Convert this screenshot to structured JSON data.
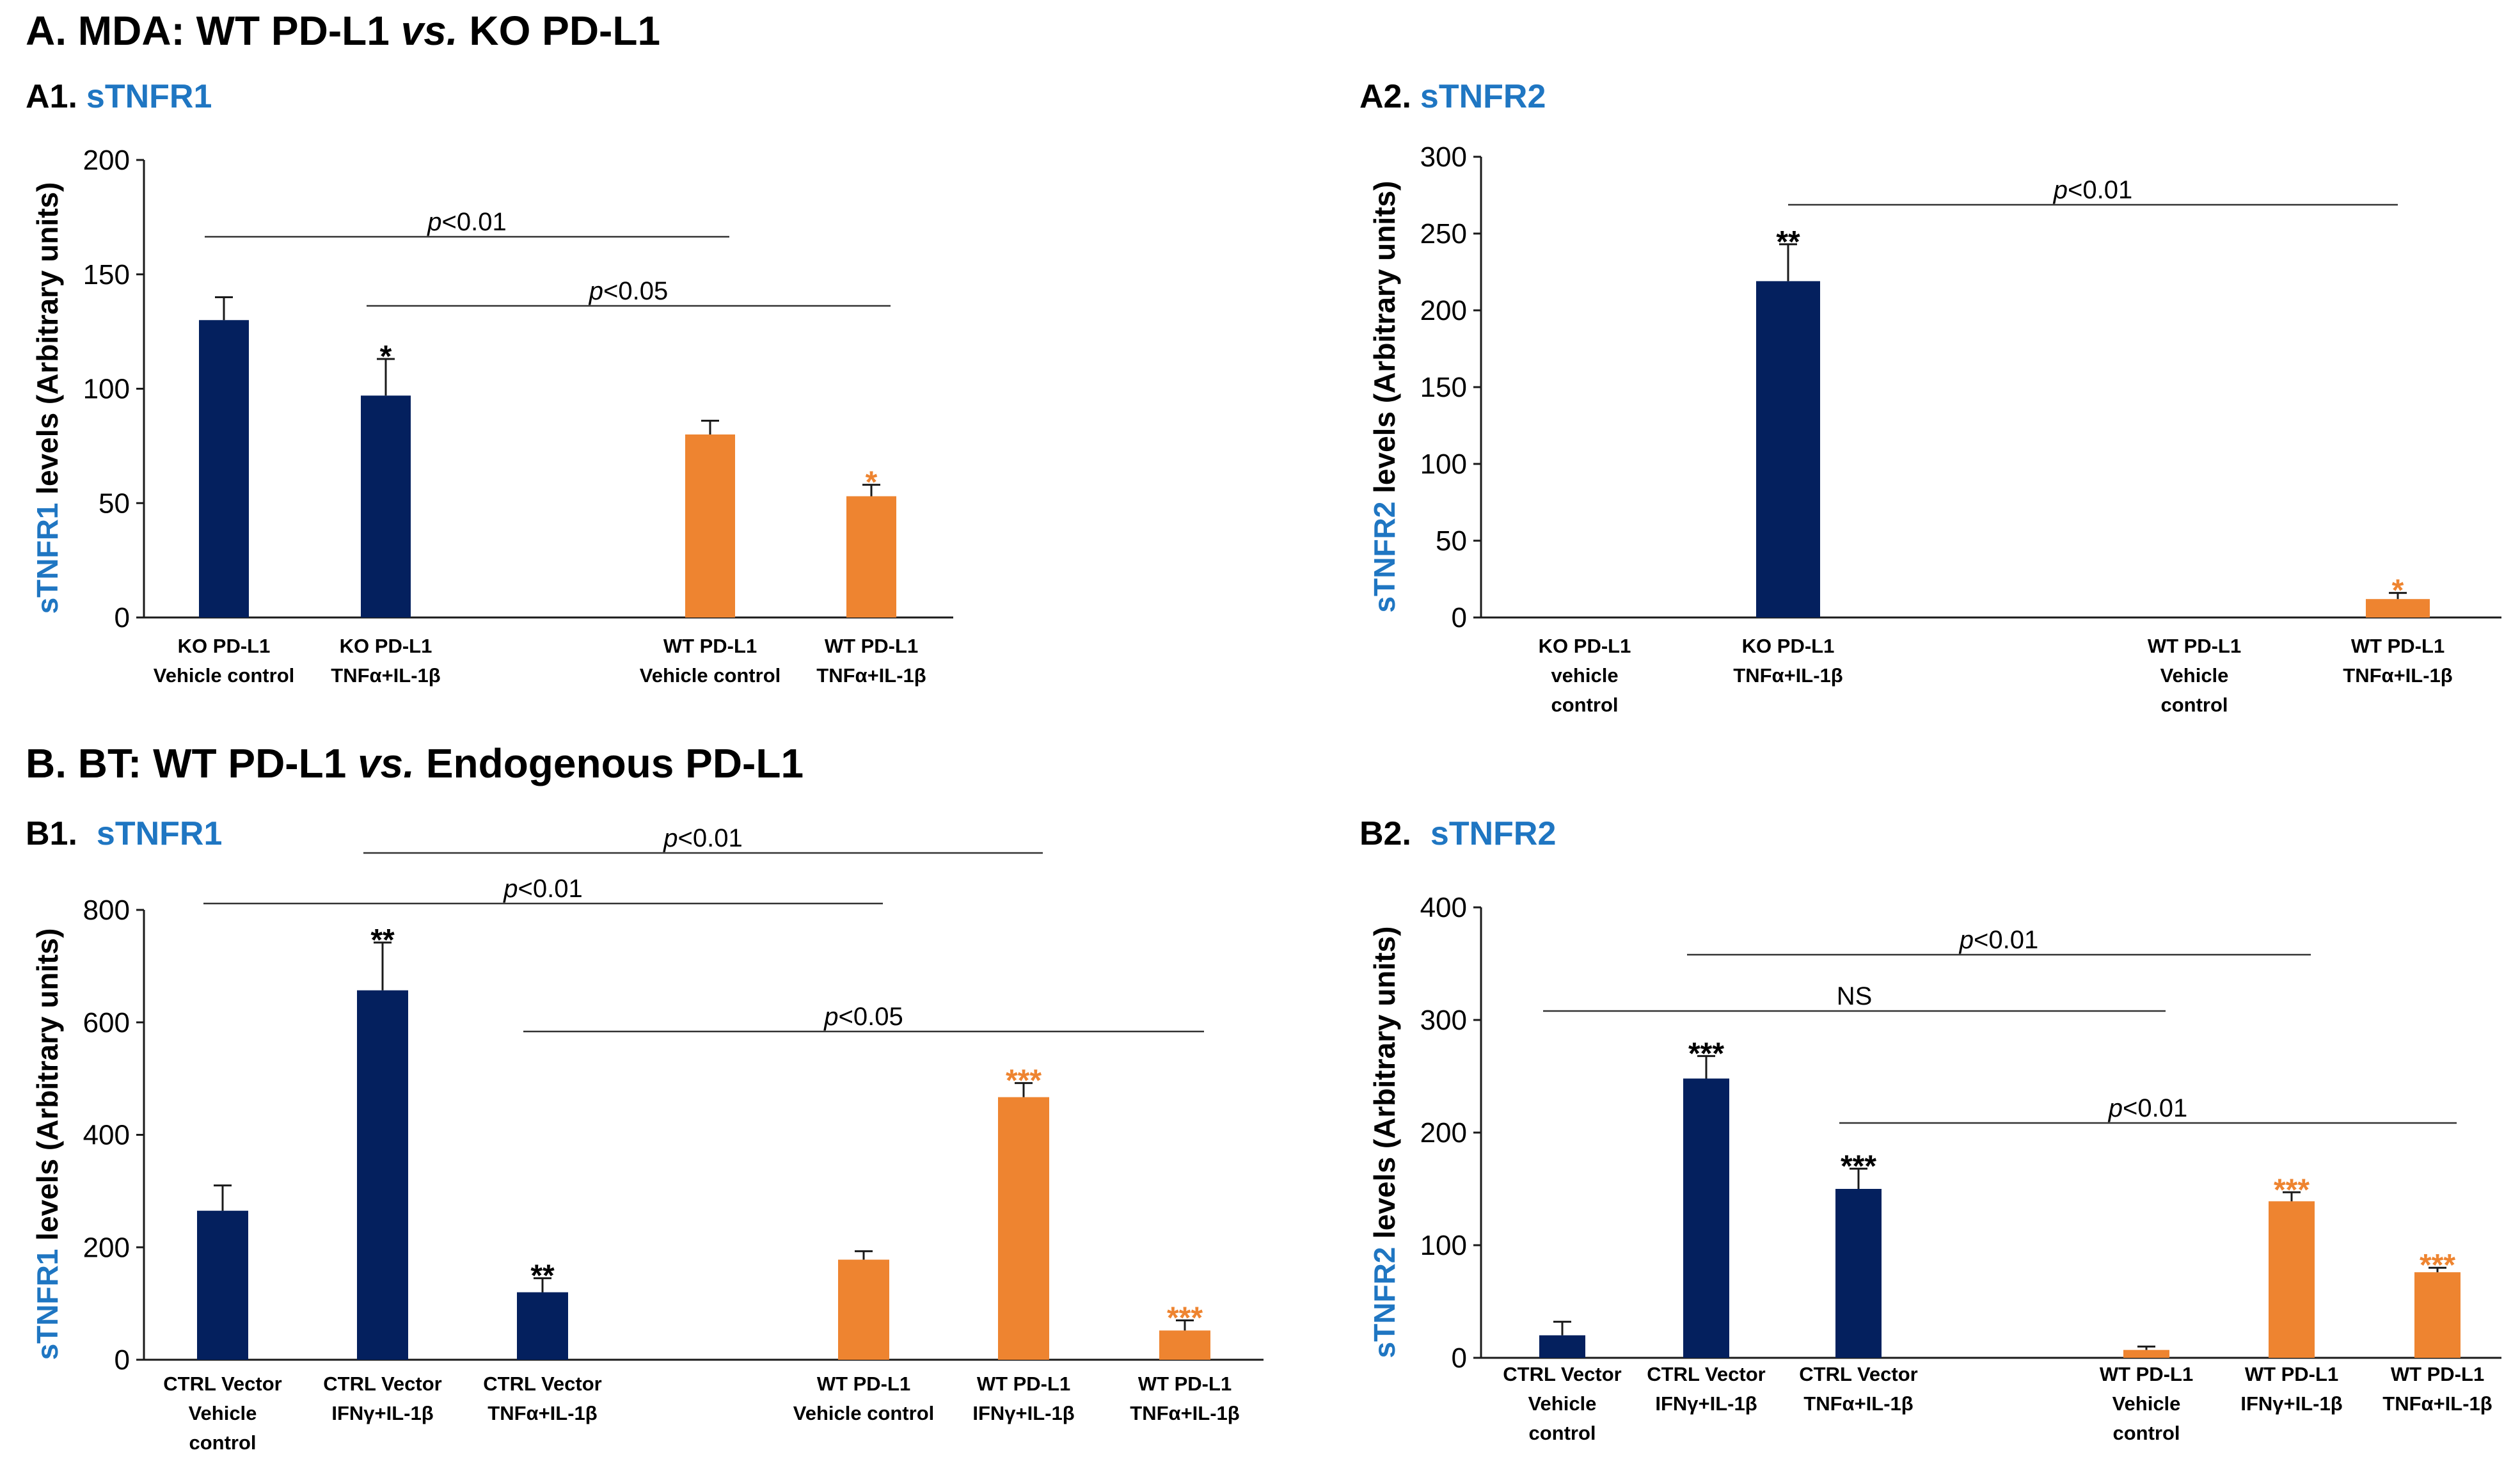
{
  "sections": [
    {
      "key": "A",
      "prefix": "A. MDA: WT PD-L1 ",
      "italic": "vs.",
      "suffix": " KO PD-L1"
    },
    {
      "key": "B",
      "prefix": "B. BT: WT PD-L1 ",
      "italic": "vs.",
      "suffix": " Endogenous PD-L1"
    }
  ],
  "colors": {
    "navy": "#04205e",
    "orange": "#ee8430",
    "blue_text": "#1f76c2"
  },
  "chart_data": [
    {
      "id": "A1",
      "type": "bar",
      "panel_label": "A1.",
      "title": "sTNFR1",
      "ylabel_colored": "sTNFR1",
      "ylabel_rest": " levels (Arbitrary units)",
      "ylim": [
        0,
        200
      ],
      "yticks": [
        "0",
        "50",
        "100",
        "150",
        "200"
      ],
      "categories": [
        [
          "KO PD-L1",
          "Vehicle control"
        ],
        [
          "KO PD-L1",
          "TNFα+IL-1β"
        ],
        [
          "WT PD-L1",
          "Vehicle control"
        ],
        [
          "WT PD-L1",
          "TNFα+IL-1β"
        ]
      ],
      "values": [
        130,
        97,
        80,
        53
      ],
      "errors": [
        10,
        16,
        6,
        5
      ],
      "groups": [
        "navy",
        "navy",
        "orange",
        "orange"
      ],
      "significance": [
        "",
        "*",
        "",
        "*"
      ],
      "comparisons": [
        {
          "from": 0,
          "to": 2,
          "prefix": "",
          "italic": "p",
          "suffix": "<0.01"
        },
        {
          "from": 1,
          "to": 3,
          "prefix": "",
          "italic": "p",
          "suffix": "<0.05"
        }
      ]
    },
    {
      "id": "A2",
      "type": "bar",
      "panel_label": "A2.",
      "title": "sTNFR2",
      "ylabel_colored": "sTNFR2",
      "ylabel_rest": " levels (Arbitrary units)",
      "ylim": [
        0,
        300
      ],
      "yticks": [
        "0",
        "50",
        "100",
        "150",
        "200",
        "250",
        "300"
      ],
      "categories": [
        [
          "KO PD-L1",
          "vehicle",
          "control"
        ],
        [
          "KO PD-L1",
          "TNFα+IL-1β"
        ],
        [
          "WT PD-L1",
          "Vehicle",
          "control"
        ],
        [
          "WT PD-L1",
          "TNFα+IL-1β"
        ]
      ],
      "values": [
        0,
        219,
        0,
        12
      ],
      "errors": [
        0,
        24,
        0,
        4
      ],
      "groups": [
        "navy",
        "navy",
        "orange",
        "orange"
      ],
      "significance": [
        "",
        "**",
        "",
        "*"
      ],
      "comparisons": [
        {
          "from": 1,
          "to": 3,
          "prefix": "",
          "italic": "p",
          "suffix": "<0.01"
        }
      ]
    },
    {
      "id": "B1",
      "type": "bar",
      "panel_label": "B1.",
      "title": "sTNFR1",
      "ylabel_colored": "sTNFR1",
      "ylabel_rest": " levels (Arbitrary units)",
      "ylim": [
        0,
        800
      ],
      "yticks": [
        "0",
        "200",
        "400",
        "600",
        "800"
      ],
      "categories": [
        [
          "CTRL Vector",
          "Vehicle",
          "control"
        ],
        [
          "CTRL Vector",
          "IFNγ+IL-1β"
        ],
        [
          "CTRL Vector",
          "TNFα+IL-1β"
        ],
        [
          "WT PD-L1",
          "Vehicle control"
        ],
        [
          "WT PD-L1",
          "IFNγ+IL-1β"
        ],
        [
          "WT PD-L1",
          "TNFα+IL-1β"
        ]
      ],
      "values": [
        265,
        657,
        120,
        178,
        467,
        52
      ],
      "errors": [
        45,
        85,
        25,
        15,
        25,
        18
      ],
      "groups": [
        "navy",
        "navy",
        "navy",
        "orange",
        "orange",
        "orange"
      ],
      "significance": [
        "",
        "**",
        "**",
        "",
        "***",
        "***"
      ],
      "comparisons": [
        {
          "from": 1,
          "to": 4,
          "prefix": "",
          "italic": "p",
          "suffix": "<0.01"
        },
        {
          "from": 0,
          "to": 3,
          "prefix": "",
          "italic": "p",
          "suffix": "<0.01"
        },
        {
          "from": 2,
          "to": 5,
          "prefix": "",
          "italic": "p",
          "suffix": "<0.05"
        }
      ]
    },
    {
      "id": "B2",
      "type": "bar",
      "panel_label": "B2.",
      "title": "sTNFR2",
      "ylabel_colored": "sTNFR2",
      "ylabel_rest": " levels (Arbitrary units)",
      "ylim": [
        0,
        400
      ],
      "yticks": [
        "0",
        "100",
        "200",
        "300",
        "400"
      ],
      "categories": [
        [
          "CTRL Vector",
          "Vehicle",
          "control"
        ],
        [
          "CTRL Vector",
          "IFNγ+IL-1β"
        ],
        [
          "CTRL Vector",
          "TNFα+IL-1β"
        ],
        [
          "WT PD-L1",
          "Vehicle",
          "control"
        ],
        [
          "WT PD-L1",
          "IFNγ+IL-1β"
        ],
        [
          "WT PD-L1",
          "TNFα+IL-1β"
        ]
      ],
      "values": [
        20,
        248,
        150,
        7,
        139,
        76
      ],
      "errors": [
        12,
        20,
        18,
        3,
        8,
        4
      ],
      "groups": [
        "navy",
        "navy",
        "navy",
        "orange",
        "orange",
        "orange"
      ],
      "significance": [
        "",
        "***",
        "***",
        "",
        "***",
        "***"
      ],
      "comparisons": [
        {
          "from": 1,
          "to": 4,
          "prefix": "",
          "italic": "p",
          "suffix": "<0.01"
        },
        {
          "from": 0,
          "to": 3,
          "prefix": "NS",
          "italic": "",
          "suffix": ""
        },
        {
          "from": 2,
          "to": 5,
          "prefix": "",
          "italic": "p",
          "suffix": "<0.01"
        }
      ]
    }
  ]
}
